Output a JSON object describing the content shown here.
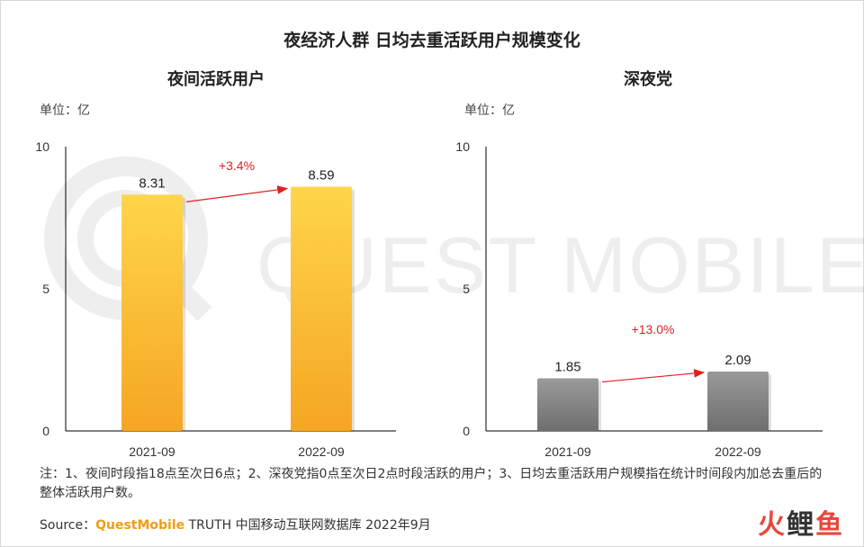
{
  "title": "夜经济人群  日均去重活跃用户规模变化",
  "watermark": "QUEST MOBILE",
  "colors": {
    "yellow_top": "#ffd54a",
    "yellow_bottom": "#f5a623",
    "gray_top": "#9a9a9a",
    "gray_bottom": "#6e6e6e",
    "growth": "#e02020",
    "accent": "#f39c12"
  },
  "chart_data": [
    {
      "type": "bar",
      "title": "夜间活跃用户",
      "unit": "单位：亿",
      "categories": [
        "2021-09",
        "2022-09"
      ],
      "values": [
        8.31,
        8.59
      ],
      "value_labels": [
        "8.31",
        "8.59"
      ],
      "yticks": [
        "0",
        "5",
        "10"
      ],
      "ylim": [
        0,
        10
      ],
      "growth_label": "+3.4%",
      "bar_color": "yellow"
    },
    {
      "type": "bar",
      "title": "深夜党",
      "unit": "单位：亿",
      "categories": [
        "2021-09",
        "2022-09"
      ],
      "values": [
        1.85,
        2.09
      ],
      "value_labels": [
        "1.85",
        "2.09"
      ],
      "yticks": [
        "0",
        "5",
        "10"
      ],
      "ylim": [
        0,
        10
      ],
      "growth_label": "+13.0%",
      "bar_color": "gray"
    }
  ],
  "note": "注：1、夜间时段指18点至次日6点；2、深夜党指0点至次日2点时段活跃的用户；3、日均去重活跃用户规模指在统计时间段内加总去重后的整体活跃用户数。",
  "source": {
    "prefix": "Source：",
    "brand": "QuestMobile",
    "rest": " TRUTH 中国移动互联网数据库 2022年9月"
  },
  "logo": {
    "text1": "火",
    "text2": "鲤",
    "text3": "鱼"
  }
}
